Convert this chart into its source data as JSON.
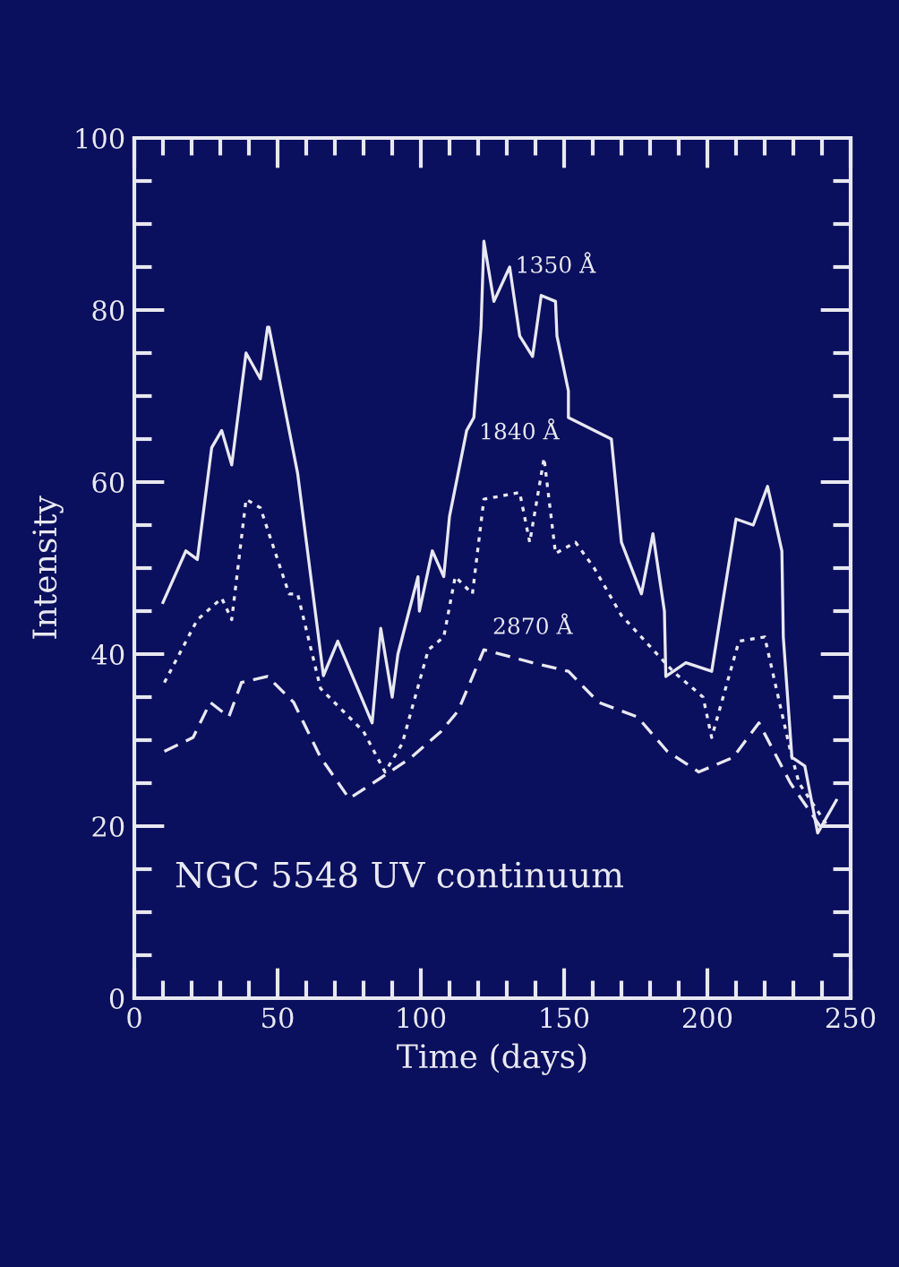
{
  "chart_data": {
    "type": "line",
    "title": "NGC 5548 UV continuum",
    "xlabel": "Time (days)",
    "ylabel": "Intensity",
    "xlim": [
      0,
      250
    ],
    "xticks": [
      0,
      50,
      100,
      150,
      200,
      250
    ],
    "ylim": [
      0,
      100
    ],
    "yticks": [
      0,
      20,
      40,
      60,
      80,
      100
    ],
    "grid": false,
    "legend": false,
    "series": [
      {
        "color": "#e8e8f0",
        "line_style": "solid",
        "x": [
          10,
          18,
          22,
          27,
          30.5,
          34,
          39,
          44,
          46.5,
          47,
          57,
          66,
          71,
          83,
          86,
          90,
          92,
          99,
          99.5,
          104,
          108,
          110,
          116,
          118.5,
          121,
          122,
          125.5,
          131,
          134.5,
          139,
          142,
          147,
          147.5,
          151.5,
          151.5,
          166.5,
          170,
          177,
          181,
          185,
          185.5,
          192.5,
          201.5,
          210,
          216,
          221,
          226,
          226.5,
          229.5,
          234,
          238.5,
          245
        ],
        "values": [
          46,
          52,
          51,
          64,
          66,
          62,
          75,
          72,
          78,
          78,
          61,
          37.5,
          41.5,
          32,
          43,
          35,
          40,
          49,
          45,
          52,
          49,
          56,
          66,
          67.5,
          78,
          88,
          81,
          85,
          77,
          74.6,
          81.7,
          81,
          77,
          70.6,
          67.5,
          65,
          53,
          47,
          54,
          45,
          37.4,
          39,
          38,
          55.7,
          55,
          59.5,
          52,
          42,
          28,
          27,
          19.2,
          23
        ]
      },
      {
        "color": "#e8e8f0",
        "line_style": "dotted",
        "x": [
          10.5,
          22,
          30.5,
          34,
          39,
          44,
          54,
          57,
          65,
          80,
          87.5,
          93.5,
          102.6,
          108,
          112,
          118,
          122,
          134.5,
          138,
          143,
          147,
          154,
          160.5,
          170,
          188,
          198.5,
          201.5,
          211,
          220,
          229,
          232,
          242
        ],
        "values": [
          36.7,
          44,
          46.5,
          44,
          58,
          57,
          47,
          47,
          36,
          31,
          26.3,
          29.6,
          40.5,
          42,
          49,
          47,
          58,
          58.8,
          53,
          62.8,
          51.7,
          53,
          50,
          44.5,
          38,
          35,
          30.3,
          41.5,
          42,
          28.7,
          25,
          20
        ]
      },
      {
        "color": "#e8e8f0",
        "line_style": "dashed",
        "x": [
          10.5,
          20.5,
          26.5,
          33,
          37.4,
          46.5,
          55.6,
          65,
          75,
          86,
          96.7,
          107,
          113,
          122,
          139,
          151.5,
          162,
          175.6,
          186,
          197,
          209,
          218,
          229,
          241
        ],
        "values": [
          28.7,
          30.3,
          34.4,
          32.7,
          36.7,
          37.4,
          34.4,
          28,
          23.2,
          25.6,
          28,
          31,
          33.4,
          40.5,
          39,
          38,
          34.4,
          32.7,
          28.7,
          26.3,
          28,
          32,
          25,
          19.2
        ]
      }
    ],
    "annotations": [
      {
        "text": "1350 Å",
        "x": 147,
        "y": 81
      },
      {
        "text": "1840 Å",
        "x": 143,
        "y": 62.8
      },
      {
        "text": "2870 Å",
        "x": 139,
        "y": 39
      }
    ]
  }
}
